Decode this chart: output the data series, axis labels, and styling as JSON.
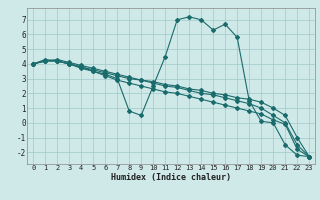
{
  "title": "",
  "xlabel": "Humidex (Indice chaleur)",
  "ylabel": "",
  "xlim": [
    -0.5,
    23.5
  ],
  "ylim": [
    -2.8,
    7.8
  ],
  "xticks": [
    0,
    1,
    2,
    3,
    4,
    5,
    6,
    7,
    8,
    9,
    10,
    11,
    12,
    13,
    14,
    15,
    16,
    17,
    18,
    19,
    20,
    21,
    22,
    23
  ],
  "yticks": [
    -2,
    -1,
    0,
    1,
    2,
    3,
    4,
    5,
    6,
    7
  ],
  "bg_color": "#cfe8e8",
  "grid_color": "#a0c8c8",
  "line_color": "#1a6b6b",
  "lines": [
    {
      "x": [
        0,
        1,
        2,
        3,
        4,
        5,
        6,
        7,
        8,
        9,
        10,
        11,
        12,
        13,
        14,
        15,
        16,
        17,
        18,
        19,
        20,
        21,
        22,
        23
      ],
      "y": [
        4.0,
        4.3,
        4.2,
        4.0,
        3.8,
        3.5,
        3.3,
        3.0,
        0.8,
        0.5,
        2.5,
        4.5,
        7.0,
        7.2,
        7.0,
        6.3,
        6.7,
        5.8,
        1.5,
        0.1,
        0.0,
        -1.5,
        -2.2,
        -2.3
      ]
    },
    {
      "x": [
        0,
        1,
        2,
        3,
        4,
        5,
        6,
        7,
        8,
        9,
        10,
        11,
        12,
        13,
        14,
        15,
        16,
        17,
        18,
        19,
        20,
        21,
        22,
        23
      ],
      "y": [
        4.0,
        4.2,
        4.2,
        4.0,
        3.7,
        3.5,
        3.2,
        2.9,
        2.7,
        2.5,
        2.3,
        2.1,
        2.0,
        1.8,
        1.6,
        1.4,
        1.2,
        1.0,
        0.8,
        0.6,
        0.2,
        -0.1,
        -1.8,
        -2.3
      ]
    },
    {
      "x": [
        0,
        1,
        2,
        3,
        4,
        5,
        6,
        7,
        8,
        9,
        10,
        11,
        12,
        13,
        14,
        15,
        16,
        17,
        18,
        19,
        20,
        21,
        22,
        23
      ],
      "y": [
        4.0,
        4.2,
        4.2,
        4.0,
        3.8,
        3.6,
        3.4,
        3.2,
        3.0,
        2.9,
        2.7,
        2.5,
        2.4,
        2.2,
        2.0,
        1.9,
        1.7,
        1.5,
        1.3,
        1.0,
        0.5,
        0.0,
        -1.5,
        -2.3
      ]
    },
    {
      "x": [
        0,
        1,
        2,
        3,
        4,
        5,
        6,
        7,
        8,
        9,
        10,
        11,
        12,
        13,
        14,
        15,
        16,
        17,
        18,
        19,
        20,
        21,
        22,
        23
      ],
      "y": [
        4.0,
        4.2,
        4.3,
        4.1,
        3.9,
        3.7,
        3.5,
        3.3,
        3.1,
        2.9,
        2.8,
        2.6,
        2.5,
        2.3,
        2.2,
        2.0,
        1.9,
        1.7,
        1.6,
        1.4,
        1.0,
        0.5,
        -1.0,
        -2.3
      ]
    }
  ],
  "marker": "D",
  "markersize": 2.0,
  "linewidth": 0.8,
  "tick_fontsize": 5.0,
  "xlabel_fontsize": 6.0
}
